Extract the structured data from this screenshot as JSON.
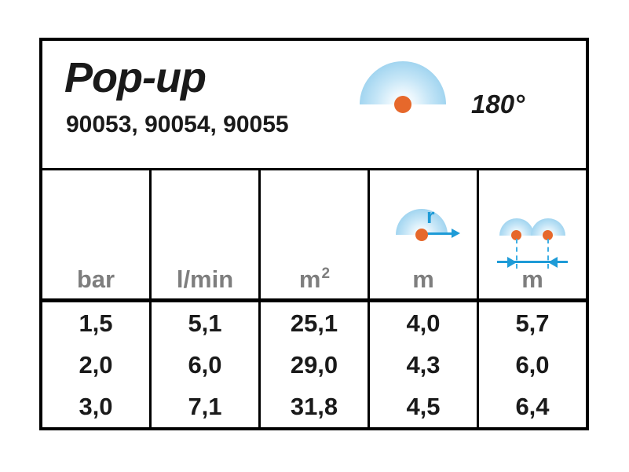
{
  "header": {
    "title": "Pop-up",
    "models": "90053, 90054, 90055",
    "spray_angle": "180°",
    "spray_icon": "semicircle-180-spray-icon"
  },
  "table": {
    "columns": [
      {
        "unit": "bar"
      },
      {
        "unit": "l/min"
      },
      {
        "unit": "m",
        "sup": "2"
      },
      {
        "unit": "m",
        "icon": "radius-icon",
        "radius_label": "r"
      },
      {
        "unit": "m",
        "icon": "spacing-icon"
      }
    ],
    "rows": [
      [
        "1,5",
        "5,1",
        "25,1",
        "4,0",
        "5,7"
      ],
      [
        "2,0",
        "6,0",
        "29,0",
        "4,3",
        "6,0"
      ],
      [
        "3,0",
        "7,1",
        "31,8",
        "4,5",
        "6,4"
      ]
    ]
  },
  "colors": {
    "accent_blue": "#1e9bd7",
    "dashed_blue": "#3eafe5",
    "spray_fill_blue": "#a2d5f0",
    "orange_dot": "#e6682b",
    "gray_unit_text": "#7e7e7e",
    "black_text": "#1a1a1a"
  }
}
